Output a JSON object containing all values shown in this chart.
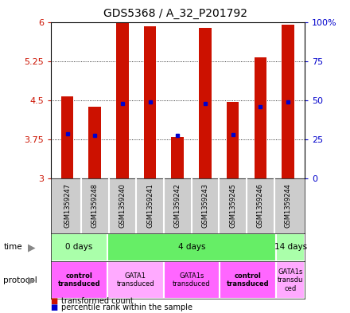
{
  "title": "GDS5368 / A_32_P201792",
  "samples": [
    "GSM1359247",
    "GSM1359248",
    "GSM1359240",
    "GSM1359241",
    "GSM1359242",
    "GSM1359243",
    "GSM1359245",
    "GSM1359246",
    "GSM1359244"
  ],
  "bar_values": [
    4.57,
    4.38,
    5.97,
    5.92,
    3.8,
    5.88,
    4.47,
    5.32,
    5.95
  ],
  "blue_values": [
    3.85,
    3.82,
    4.43,
    4.47,
    3.82,
    4.44,
    3.84,
    4.37,
    4.47
  ],
  "bar_color": "#cc1100",
  "blue_color": "#0000cc",
  "ymin": 3.0,
  "ymax": 6.0,
  "yticks_left": [
    3,
    3.75,
    4.5,
    5.25,
    6
  ],
  "yticks_right": [
    0,
    25,
    50,
    75,
    100
  ],
  "ylabel_left_color": "#cc1100",
  "ylabel_right_color": "#0000cc",
  "background_color": "#ffffff",
  "plot_bg": "#ffffff",
  "time_groups": [
    {
      "label": "0 days",
      "start": 0,
      "end": 2,
      "color": "#aaffaa"
    },
    {
      "label": "4 days",
      "start": 2,
      "end": 8,
      "color": "#66ee66"
    },
    {
      "label": "14 days",
      "start": 8,
      "end": 9,
      "color": "#aaffaa"
    }
  ],
  "protocol_groups": [
    {
      "label": "control\ntransduced",
      "start": 0,
      "end": 2,
      "color": "#ff66ff",
      "bold": true
    },
    {
      "label": "GATA1\ntransduced",
      "start": 2,
      "end": 4,
      "color": "#ffaaff",
      "bold": false
    },
    {
      "label": "GATA1s\ntransduced",
      "start": 4,
      "end": 6,
      "color": "#ff66ff",
      "bold": false
    },
    {
      "label": "control\ntransduced",
      "start": 6,
      "end": 8,
      "color": "#ff66ff",
      "bold": true
    },
    {
      "label": "GATA1s\ntransdu\nced",
      "start": 8,
      "end": 9,
      "color": "#ffaaff",
      "bold": false
    }
  ],
  "legend_red_label": "transformed count",
  "legend_blue_label": "percentile rank within the sample",
  "bar_width": 0.45,
  "title_fontsize": 10
}
